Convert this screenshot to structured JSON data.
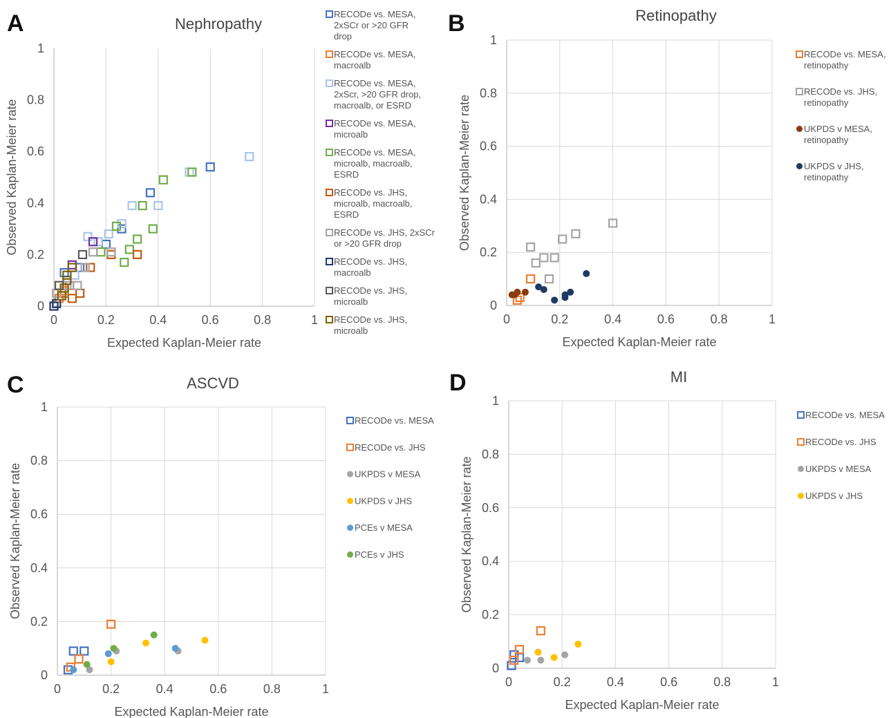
{
  "chart_data": [
    {
      "type": "scatter",
      "panel": "A",
      "title": "Nephropathy",
      "xlabel": "Expected Kaplan-Meier rate",
      "ylabel": "Observed Kaplan-Meier rate",
      "xlim": [
        0,
        1
      ],
      "ylim": [
        0,
        1
      ],
      "xticks": [
        "0",
        "0.2",
        "0.4",
        "0.6",
        "0.8",
        "1"
      ],
      "yticks": [
        "0",
        "0.2",
        "0.4",
        "0.6",
        "0.8",
        "1"
      ],
      "grid": "vertical",
      "legend_position": "right",
      "series": [
        {
          "name": "RECODe vs. MESA, 2xSCr or >20 GFR drop",
          "label_lines": [
            "RECODe vs. MESA,",
            "2xSCr or >20 GFR",
            "drop"
          ],
          "marker": "square",
          "color": "#4472C4",
          "points": [
            [
              0.04,
              0.13
            ],
            [
              0.1,
              0.15
            ],
            [
              0.2,
              0.24
            ],
            [
              0.26,
              0.3
            ],
            [
              0.37,
              0.44
            ],
            [
              0.6,
              0.54
            ]
          ]
        },
        {
          "name": "RECODe vs. MESA, macroalb",
          "label_lines": [
            "RECODe vs. MESA,",
            "macroalb"
          ],
          "marker": "square",
          "color": "#ED7D31",
          "points": [
            [
              0.02,
              0.03
            ],
            [
              0.04,
              0.06
            ],
            [
              0.06,
              0.08
            ]
          ]
        },
        {
          "name": "RECODe vs. MESA, 2xScr, >20 GFR drop, macroalb, or ESRD",
          "label_lines": [
            "RECODe vs. MESA,",
            "2xScr, >20 GFR drop,",
            "macroalb, or ESRD"
          ],
          "marker": "square",
          "color": "#A9C4EB",
          "points": [
            [
              0.08,
              0.12
            ],
            [
              0.13,
              0.27
            ],
            [
              0.17,
              0.25
            ],
            [
              0.21,
              0.28
            ],
            [
              0.26,
              0.32
            ],
            [
              0.3,
              0.39
            ],
            [
              0.4,
              0.39
            ],
            [
              0.52,
              0.52
            ],
            [
              0.75,
              0.58
            ]
          ]
        },
        {
          "name": "RECODe vs. MESA, microalb",
          "label_lines": [
            "RECODe vs. MESA,",
            "microalb"
          ],
          "marker": "square",
          "color": "#7030A0",
          "points": [
            [
              0.07,
              0.16
            ],
            [
              0.15,
              0.25
            ]
          ]
        },
        {
          "name": "RECODe vs. MESA, microalb, macroalb, ESRD",
          "label_lines": [
            "RECODe vs. MESA,",
            "microalb, macroalb,",
            "ESRD"
          ],
          "marker": "square",
          "color": "#70AD47",
          "points": [
            [
              0.04,
              0.05
            ],
            [
              0.18,
              0.21
            ],
            [
              0.24,
              0.31
            ],
            [
              0.27,
              0.17
            ],
            [
              0.29,
              0.22
            ],
            [
              0.32,
              0.26
            ],
            [
              0.34,
              0.39
            ],
            [
              0.38,
              0.3
            ],
            [
              0.42,
              0.49
            ],
            [
              0.53,
              0.52
            ]
          ]
        },
        {
          "name": "RECODe vs. JHS, microalb, macroalb, ESRD",
          "label_lines": [
            "RECODe vs. JHS,",
            "microalb, macroalb,",
            "ESRD"
          ],
          "marker": "square",
          "color": "#C55A11",
          "points": [
            [
              0.03,
              0.05
            ],
            [
              0.07,
              0.03
            ],
            [
              0.1,
              0.05
            ],
            [
              0.14,
              0.15
            ],
            [
              0.22,
              0.2
            ],
            [
              0.32,
              0.2
            ]
          ]
        },
        {
          "name": "RECODe vs. JHS, 2xSCr or >20 GFR drop",
          "label_lines": [
            "RECODe vs. JHS, 2xSCr",
            "or >20 GFR drop"
          ],
          "marker": "square",
          "color": "#A5A5A5",
          "points": [
            [
              0.01,
              0.05
            ],
            [
              0.05,
              0.08
            ],
            [
              0.09,
              0.08
            ],
            [
              0.12,
              0.15
            ],
            [
              0.15,
              0.21
            ],
            [
              0.22,
              0.21
            ]
          ]
        },
        {
          "name": "RECODe vs. JHS, macroalb",
          "label_lines": [
            "RECODe vs. JHS,",
            "macroalb"
          ],
          "marker": "square",
          "color": "#1F3864",
          "points": [
            [
              0.0,
              0.0
            ],
            [
              0.01,
              0.01
            ]
          ]
        },
        {
          "name": "RECODe vs. JHS, microalb",
          "label_lines": [
            "RECODe vs. JHS,",
            "microalb"
          ],
          "marker": "square",
          "color": "#595959",
          "points": [
            [
              0.02,
              0.08
            ],
            [
              0.05,
              0.1
            ],
            [
              0.11,
              0.2
            ]
          ]
        },
        {
          "name": "RECODe vs. JHS, microalb",
          "label_lines": [
            "RECODe vs. JHS,",
            "microalb"
          ],
          "marker": "square",
          "color": "#7F6000",
          "points": [
            [
              0.03,
              0.04
            ],
            [
              0.05,
              0.12
            ],
            [
              0.07,
              0.15
            ],
            [
              0.04,
              0.07
            ]
          ]
        }
      ]
    },
    {
      "type": "scatter",
      "panel": "B",
      "title": "Retinopathy",
      "xlabel": "Expected Kaplan-Meier rate",
      "ylabel": "Observed Kaplan-Meier rate",
      "xlim": [
        0,
        1
      ],
      "ylim": [
        0,
        1
      ],
      "xticks": [
        "0",
        "0.2",
        "0.4",
        "0.6",
        "0.8",
        "1"
      ],
      "yticks": [
        "0",
        "0.2",
        "0.4",
        "0.6",
        "0.8",
        "1"
      ],
      "grid": "both",
      "legend_position": "right",
      "series": [
        {
          "name": "RECODe vs. MESA, retinopathy",
          "label_lines": [
            "RECODe vs. MESA,",
            "retinopathy"
          ],
          "marker": "square",
          "color": "#ED7D31",
          "points": [
            [
              0.04,
              0.02
            ],
            [
              0.05,
              0.03
            ],
            [
              0.09,
              0.1
            ]
          ]
        },
        {
          "name": "RECODe vs. JHS, retinopathy",
          "label_lines": [
            "RECODe vs. JHS,",
            "retinopathy"
          ],
          "marker": "square",
          "color": "#A5A5A5",
          "points": [
            [
              0.09,
              0.22
            ],
            [
              0.11,
              0.16
            ],
            [
              0.14,
              0.18
            ],
            [
              0.16,
              0.1
            ],
            [
              0.18,
              0.18
            ],
            [
              0.21,
              0.25
            ],
            [
              0.26,
              0.27
            ],
            [
              0.4,
              0.31
            ]
          ]
        },
        {
          "name": "UKPDS v MESA, retinopathy",
          "label_lines": [
            "UKPDS v MESA,",
            "retinopathy"
          ],
          "marker": "circle",
          "color": "#8B3A0F",
          "points": [
            [
              0.02,
              0.04
            ],
            [
              0.03,
              0.04
            ],
            [
              0.04,
              0.05
            ],
            [
              0.07,
              0.05
            ]
          ]
        },
        {
          "name": "UKPDS v JHS, retinopathy",
          "label_lines": [
            "UKPDS v JHS,",
            "retinopathy"
          ],
          "marker": "circle",
          "color": "#203864",
          "points": [
            [
              0.12,
              0.07
            ],
            [
              0.14,
              0.06
            ],
            [
              0.18,
              0.02
            ],
            [
              0.22,
              0.03
            ],
            [
              0.22,
              0.04
            ],
            [
              0.24,
              0.05
            ],
            [
              0.3,
              0.12
            ]
          ]
        }
      ]
    },
    {
      "type": "scatter",
      "panel": "C",
      "title": "ASCVD",
      "xlabel": "Expected Kaplan-Meier rate",
      "ylabel": "Observed Kaplan-Meier rate",
      "xlim": [
        0,
        1
      ],
      "ylim": [
        0,
        1
      ],
      "xticks": [
        "0",
        "0.2",
        "0.4",
        "0.6",
        "0.8",
        "1"
      ],
      "yticks": [
        "0",
        "0.2",
        "0.4",
        "0.6",
        "0.8",
        "1"
      ],
      "grid": "both",
      "legend_position": "right",
      "series": [
        {
          "name": "RECODe vs. MESA",
          "label_lines": [
            "RECODe vs. MESA"
          ],
          "marker": "square",
          "color": "#4472C4",
          "points": [
            [
              0.04,
              0.02
            ],
            [
              0.06,
              0.09
            ],
            [
              0.1,
              0.09
            ]
          ]
        },
        {
          "name": "RECODe vs. JHS",
          "label_lines": [
            "RECODe vs. JHS"
          ],
          "marker": "square",
          "color": "#ED7D31",
          "points": [
            [
              0.05,
              0.03
            ],
            [
              0.08,
              0.06
            ],
            [
              0.2,
              0.19
            ]
          ]
        },
        {
          "name": "UKPDS v MESA",
          "label_lines": [
            "UKPDS v MESA"
          ],
          "marker": "circle",
          "color": "#A5A5A5",
          "points": [
            [
              0.12,
              0.02
            ],
            [
              0.22,
              0.09
            ],
            [
              0.45,
              0.09
            ]
          ]
        },
        {
          "name": "UKPDS v JHS",
          "label_lines": [
            "UKPDS v JHS"
          ],
          "marker": "circle",
          "color": "#FFC000",
          "points": [
            [
              0.2,
              0.05
            ],
            [
              0.33,
              0.12
            ],
            [
              0.55,
              0.13
            ]
          ]
        },
        {
          "name": "PCEs v MESA",
          "label_lines": [
            "PCEs v MESA"
          ],
          "marker": "circle",
          "color": "#5B9BD5",
          "points": [
            [
              0.06,
              0.02
            ],
            [
              0.19,
              0.08
            ],
            [
              0.44,
              0.1
            ]
          ]
        },
        {
          "name": "PCEs v JHS",
          "label_lines": [
            "PCEs v JHS"
          ],
          "marker": "circle",
          "color": "#70AD47",
          "points": [
            [
              0.11,
              0.04
            ],
            [
              0.21,
              0.1
            ],
            [
              0.36,
              0.15
            ]
          ]
        }
      ]
    },
    {
      "type": "scatter",
      "panel": "D",
      "title": "MI",
      "xlabel": "Expected Kaplan-Meier rate",
      "ylabel": "Observed Kaplan-Meier rate",
      "xlim": [
        0,
        1
      ],
      "ylim": [
        0,
        1
      ],
      "xticks": [
        "0",
        "0.2",
        "0.4",
        "0.6",
        "0.8",
        "1"
      ],
      "yticks": [
        "0",
        "0.2",
        "0.4",
        "0.6",
        "0.8",
        "1"
      ],
      "grid": "both",
      "legend_position": "right",
      "series": [
        {
          "name": "RECODe vs. MESA",
          "label_lines": [
            "RECODe vs. MESA"
          ],
          "marker": "square",
          "color": "#4472C4",
          "points": [
            [
              0.01,
              0.01
            ],
            [
              0.02,
              0.05
            ],
            [
              0.04,
              0.04
            ]
          ]
        },
        {
          "name": "RECODe vs. JHS",
          "label_lines": [
            "RECODe vs. JHS"
          ],
          "marker": "square",
          "color": "#ED7D31",
          "points": [
            [
              0.02,
              0.03
            ],
            [
              0.04,
              0.07
            ],
            [
              0.12,
              0.14
            ]
          ]
        },
        {
          "name": "UKPDS v MESA",
          "label_lines": [
            "UKPDS v MESA"
          ],
          "marker": "circle",
          "color": "#A5A5A5",
          "points": [
            [
              0.07,
              0.03
            ],
            [
              0.12,
              0.03
            ],
            [
              0.21,
              0.05
            ]
          ]
        },
        {
          "name": "UKPDS v JHS",
          "label_lines": [
            "UKPDS v JHS"
          ],
          "marker": "circle",
          "color": "#FFC000",
          "points": [
            [
              0.11,
              0.06
            ],
            [
              0.17,
              0.04
            ],
            [
              0.26,
              0.09
            ]
          ]
        }
      ]
    }
  ]
}
